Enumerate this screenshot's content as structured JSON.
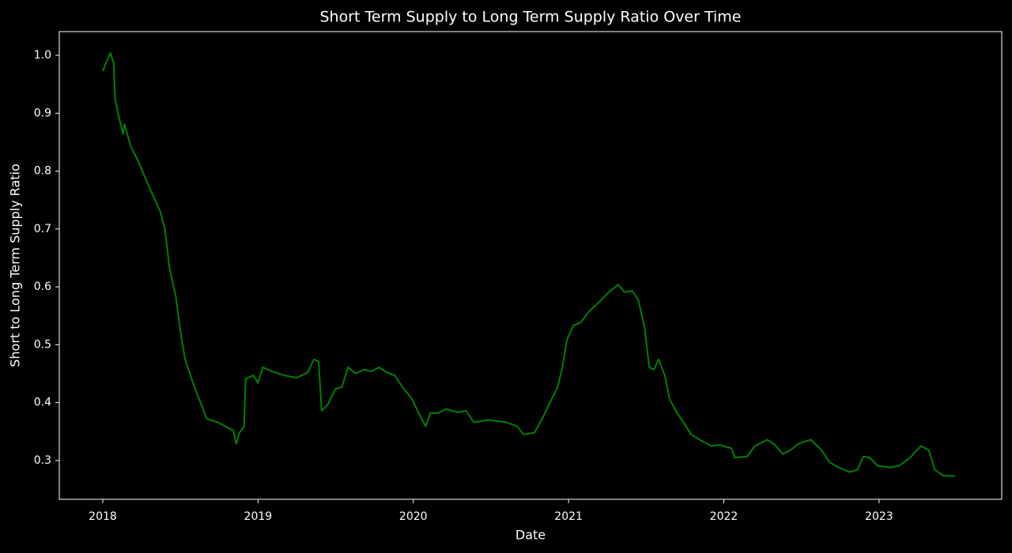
{
  "chart_data": {
    "type": "line",
    "title": "Short Term Supply to Long Term Supply Ratio Over Time",
    "x_label": "Date",
    "y_label": "Short to Long Term Supply Ratio",
    "color": "#008000",
    "x": [
      2018.0,
      2018.03,
      2018.05,
      2018.07,
      2018.08,
      2018.1,
      2018.13,
      2018.14,
      2018.18,
      2018.23,
      2018.28,
      2018.33,
      2018.37,
      2018.4,
      2018.43,
      2018.47,
      2018.5,
      2018.53,
      2018.59,
      2018.64,
      2018.67,
      2018.74,
      2018.79,
      2018.84,
      2018.86,
      2018.88,
      2018.91,
      2018.92,
      2018.97,
      2019.0,
      2019.03,
      2019.09,
      2019.17,
      2019.25,
      2019.32,
      2019.36,
      2019.39,
      2019.41,
      2019.45,
      2019.5,
      2019.54,
      2019.58,
      2019.63,
      2019.68,
      2019.73,
      2019.78,
      2019.83,
      2019.88,
      2019.93,
      2019.99,
      2020.04,
      2020.08,
      2020.11,
      2020.16,
      2020.21,
      2020.29,
      2020.34,
      2020.39,
      2020.49,
      2020.6,
      2020.67,
      2020.71,
      2020.78,
      2020.83,
      2020.88,
      2020.93,
      2020.96,
      2020.99,
      2021.03,
      2021.08,
      2021.13,
      2021.21,
      2021.26,
      2021.32,
      2021.36,
      2021.41,
      2021.45,
      2021.49,
      2021.52,
      2021.55,
      2021.58,
      2021.62,
      2021.65,
      2021.69,
      2021.74,
      2021.79,
      2021.87,
      2021.92,
      2021.97,
      2022.05,
      2022.07,
      2022.15,
      2022.2,
      2022.28,
      2022.33,
      2022.38,
      2022.43,
      2022.48,
      2022.56,
      2022.63,
      2022.68,
      2022.74,
      2022.81,
      2022.86,
      2022.9,
      2022.94,
      2022.99,
      2023.07,
      2023.13,
      2023.2,
      2023.27,
      2023.32,
      2023.36,
      2023.41,
      2023.49
    ],
    "values": [
      0.973,
      0.993,
      1.004,
      0.986,
      0.925,
      0.898,
      0.864,
      0.881,
      0.843,
      0.816,
      0.784,
      0.754,
      0.73,
      0.7,
      0.632,
      0.584,
      0.523,
      0.475,
      0.427,
      0.393,
      0.372,
      0.366,
      0.359,
      0.352,
      0.329,
      0.348,
      0.359,
      0.441,
      0.447,
      0.434,
      0.461,
      0.454,
      0.447,
      0.443,
      0.452,
      0.475,
      0.471,
      0.386,
      0.397,
      0.424,
      0.427,
      0.461,
      0.45,
      0.457,
      0.454,
      0.461,
      0.452,
      0.447,
      0.427,
      0.407,
      0.379,
      0.359,
      0.382,
      0.382,
      0.389,
      0.383,
      0.386,
      0.366,
      0.37,
      0.366,
      0.359,
      0.345,
      0.348,
      0.372,
      0.4,
      0.427,
      0.461,
      0.509,
      0.533,
      0.539,
      0.557,
      0.577,
      0.591,
      0.604,
      0.591,
      0.593,
      0.577,
      0.529,
      0.461,
      0.457,
      0.475,
      0.447,
      0.407,
      0.386,
      0.366,
      0.345,
      0.332,
      0.325,
      0.327,
      0.321,
      0.305,
      0.307,
      0.325,
      0.336,
      0.327,
      0.311,
      0.318,
      0.329,
      0.336,
      0.318,
      0.297,
      0.288,
      0.28,
      0.284,
      0.307,
      0.305,
      0.291,
      0.288,
      0.291,
      0.305,
      0.325,
      0.318,
      0.284,
      0.274,
      0.273
    ],
    "xlim": [
      2017.72,
      2023.79
    ],
    "xticks": [
      2018,
      2019,
      2020,
      2021,
      2022,
      2023
    ],
    "ylim": [
      0.233,
      1.041
    ],
    "yticks": [
      0.3,
      0.4,
      0.5,
      0.6,
      0.7,
      0.8,
      0.9,
      {
        "value": 1,
        "label": "1.0"
      }
    ]
  }
}
